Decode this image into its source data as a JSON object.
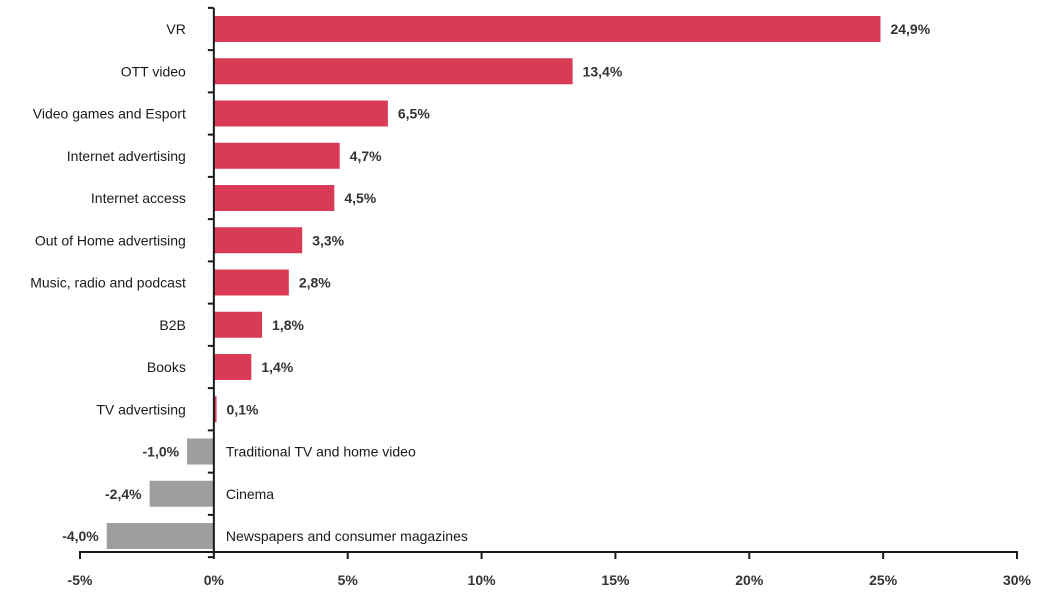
{
  "chart_data": {
    "type": "bar",
    "orientation": "horizontal",
    "title": "",
    "xlabel": "",
    "ylabel": "",
    "xlim": [
      -5,
      30
    ],
    "grid": false,
    "legend": "none",
    "colors": {
      "positive": "#d93a56",
      "negative": "#9e9e9e"
    },
    "xticks": [
      -5,
      0,
      5,
      10,
      15,
      20,
      25,
      30
    ],
    "xtick_labels": [
      "-5%",
      "0%",
      "5%",
      "10%",
      "15%",
      "20%",
      "25%",
      "30%"
    ],
    "categories": [
      "VR",
      "OTT video",
      "Video games and Esport",
      "Internet advertising",
      "Internet access",
      "Out of Home advertising",
      "Music, radio and podcast",
      "B2B",
      "Books",
      "TV advertising",
      "Traditional TV and home video",
      "Cinema",
      "Newspapers and consumer magazines"
    ],
    "values": [
      24.9,
      13.4,
      6.5,
      4.7,
      4.5,
      3.3,
      2.8,
      1.8,
      1.4,
      0.1,
      -1.0,
      -2.4,
      -4.0
    ],
    "value_labels": [
      "24,9%",
      "13,4%",
      "6,5%",
      "4,7%",
      "4,5%",
      "3,3%",
      "2,8%",
      "1,8%",
      "1,4%",
      "0,1%",
      "-1,0%",
      "-2,4%",
      "-4,0%"
    ]
  }
}
